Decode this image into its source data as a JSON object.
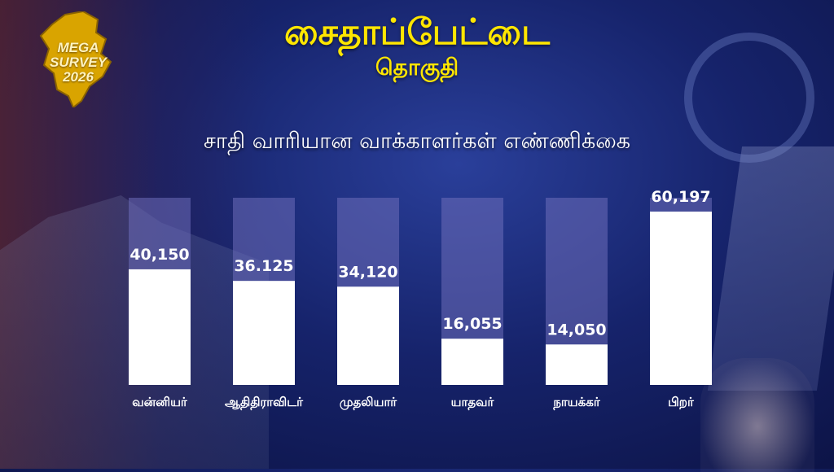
{
  "header": {
    "title": "சைதாப்பேட்டை",
    "subtitle": "தொகுதி"
  },
  "logo": {
    "line1": "MEGA SURVEY",
    "line2": "2026",
    "icon": "tamil-nadu-map-icon"
  },
  "colors": {
    "title": "#ffe600",
    "bar": "#ffffff",
    "track": "#6e6eb9",
    "background": "#16236b"
  },
  "chart_data": {
    "type": "bar",
    "title": "சாதி வாரியான வாக்காளர்கள்  எண்ணிக்கை",
    "categories": [
      "வன்னியர்",
      "ஆதிதிராவிடர்",
      "முதலியார்",
      "யாதவர்",
      "நாயக்கர்",
      "பிறர்"
    ],
    "values": [
      40150,
      36125,
      34120,
      16055,
      14050,
      60197
    ],
    "labels": [
      "40,150",
      "36.125",
      "34,120",
      "16,055",
      "14,050",
      "60,197"
    ],
    "ylim": [
      0,
      65000
    ],
    "grid": false
  }
}
